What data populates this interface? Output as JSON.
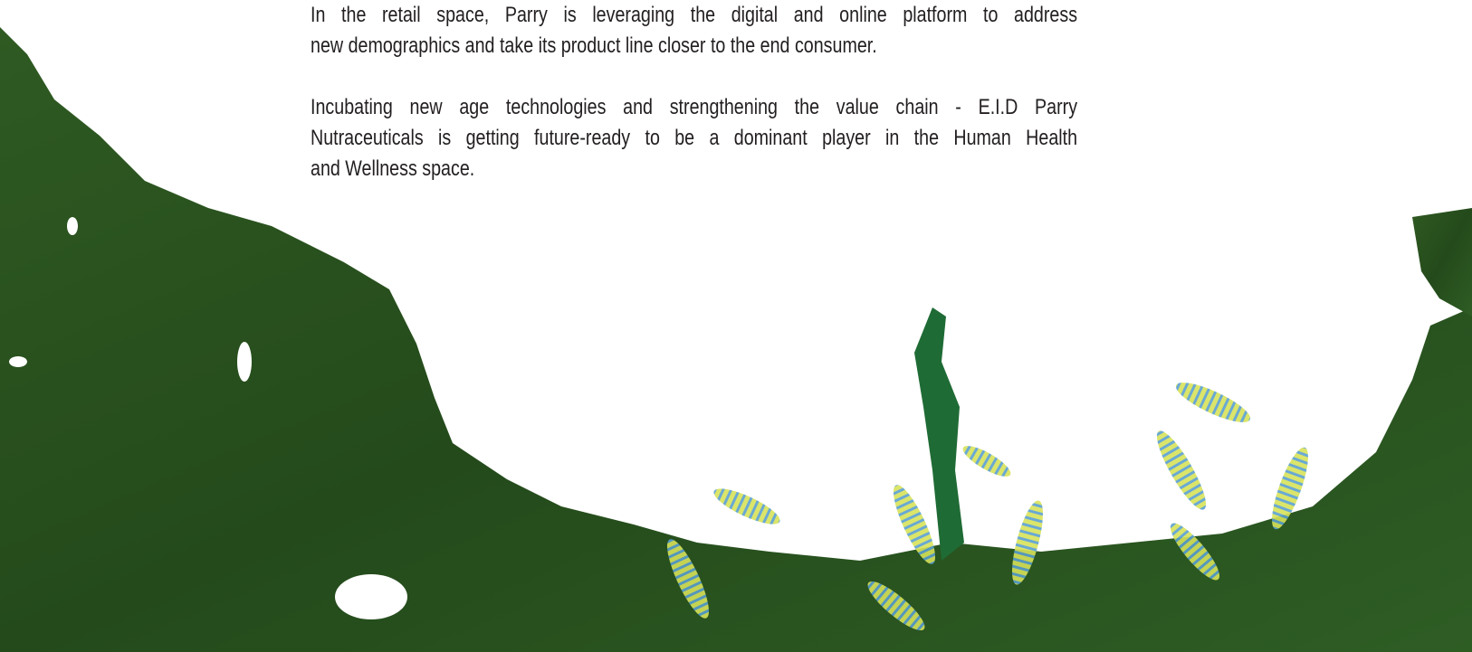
{
  "paragraphs": [
    {
      "lines": [
        "In the retail space, Parry is leveraging the digital and online platform to address",
        "new demographics and take its product line closer to the end consumer."
      ]
    },
    {
      "lines": [
        "Incubating new age technologies and strengthening the value chain - E.I.D Parry",
        "Nutraceuticals is getting future-ready to be a dominant player in the Human Health",
        "and Wellness space."
      ]
    }
  ]
}
